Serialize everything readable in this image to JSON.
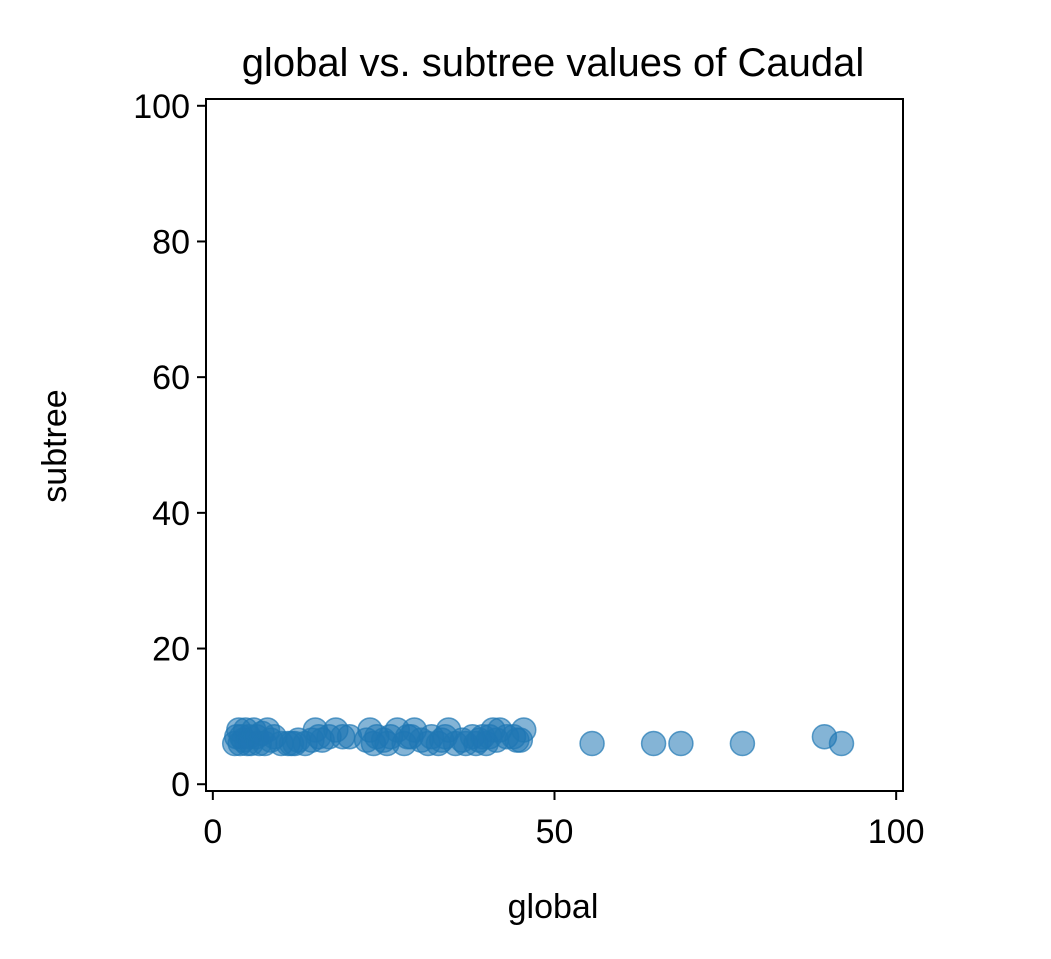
{
  "chart_data": {
    "type": "scatter",
    "title": "global vs. subtree values of Caudal",
    "xlabel": "global",
    "ylabel": "subtree",
    "xlim": [
      -1,
      101
    ],
    "ylim": [
      -1,
      101
    ],
    "xticks": [
      0,
      50,
      100
    ],
    "yticks": [
      0,
      20,
      40,
      60,
      80,
      100
    ],
    "grid": false,
    "legend": "none",
    "marker_color": "#1f77b4",
    "marker_alpha": 0.55,
    "points": [
      {
        "x": 3.2,
        "y": 6
      },
      {
        "x": 3.5,
        "y": 7
      },
      {
        "x": 3.8,
        "y": 8
      },
      {
        "x": 4.0,
        "y": 6
      },
      {
        "x": 4.2,
        "y": 7
      },
      {
        "x": 4.5,
        "y": 6.5
      },
      {
        "x": 4.8,
        "y": 8
      },
      {
        "x": 5.0,
        "y": 6
      },
      {
        "x": 5.3,
        "y": 7
      },
      {
        "x": 5.6,
        "y": 6
      },
      {
        "x": 6.0,
        "y": 8
      },
      {
        "x": 6.4,
        "y": 7
      },
      {
        "x": 6.8,
        "y": 6
      },
      {
        "x": 7.2,
        "y": 7.5
      },
      {
        "x": 7.6,
        "y": 6
      },
      {
        "x": 8.0,
        "y": 8
      },
      {
        "x": 8.5,
        "y": 6.5
      },
      {
        "x": 9.0,
        "y": 7
      },
      {
        "x": 10.0,
        "y": 6
      },
      {
        "x": 11.0,
        "y": 6
      },
      {
        "x": 11.5,
        "y": 6
      },
      {
        "x": 12.0,
        "y": 6
      },
      {
        "x": 12.5,
        "y": 6.5
      },
      {
        "x": 13.5,
        "y": 6
      },
      {
        "x": 14.5,
        "y": 6.5
      },
      {
        "x": 15.0,
        "y": 8
      },
      {
        "x": 15.5,
        "y": 7
      },
      {
        "x": 16.0,
        "y": 6.5
      },
      {
        "x": 17.0,
        "y": 7
      },
      {
        "x": 18.0,
        "y": 8
      },
      {
        "x": 19.0,
        "y": 7
      },
      {
        "x": 20.0,
        "y": 7
      },
      {
        "x": 22.5,
        "y": 6.5
      },
      {
        "x": 23.0,
        "y": 8
      },
      {
        "x": 23.5,
        "y": 6
      },
      {
        "x": 24.0,
        "y": 7
      },
      {
        "x": 25.0,
        "y": 6.5
      },
      {
        "x": 25.5,
        "y": 6
      },
      {
        "x": 26.0,
        "y": 7
      },
      {
        "x": 27.0,
        "y": 8
      },
      {
        "x": 28.0,
        "y": 6
      },
      {
        "x": 28.5,
        "y": 7
      },
      {
        "x": 29.0,
        "y": 7
      },
      {
        "x": 29.5,
        "y": 8
      },
      {
        "x": 30.5,
        "y": 6.5
      },
      {
        "x": 31.5,
        "y": 6
      },
      {
        "x": 32.0,
        "y": 7
      },
      {
        "x": 33.0,
        "y": 6
      },
      {
        "x": 33.5,
        "y": 6.5
      },
      {
        "x": 34.0,
        "y": 7
      },
      {
        "x": 34.5,
        "y": 8
      },
      {
        "x": 35.5,
        "y": 6
      },
      {
        "x": 36.5,
        "y": 6.5
      },
      {
        "x": 37.0,
        "y": 6
      },
      {
        "x": 38.0,
        "y": 7
      },
      {
        "x": 38.5,
        "y": 6
      },
      {
        "x": 39.0,
        "y": 6.5
      },
      {
        "x": 39.5,
        "y": 7
      },
      {
        "x": 40.0,
        "y": 6
      },
      {
        "x": 40.5,
        "y": 7
      },
      {
        "x": 41.0,
        "y": 8
      },
      {
        "x": 41.5,
        "y": 6.5
      },
      {
        "x": 42.0,
        "y": 8
      },
      {
        "x": 43.0,
        "y": 7
      },
      {
        "x": 44.0,
        "y": 7
      },
      {
        "x": 44.5,
        "y": 6.5
      },
      {
        "x": 45.0,
        "y": 6.5
      },
      {
        "x": 45.5,
        "y": 8
      },
      {
        "x": 55.5,
        "y": 6
      },
      {
        "x": 64.5,
        "y": 6
      },
      {
        "x": 68.5,
        "y": 6
      },
      {
        "x": 77.5,
        "y": 6
      },
      {
        "x": 89.5,
        "y": 7
      },
      {
        "x": 92.0,
        "y": 6
      }
    ]
  }
}
